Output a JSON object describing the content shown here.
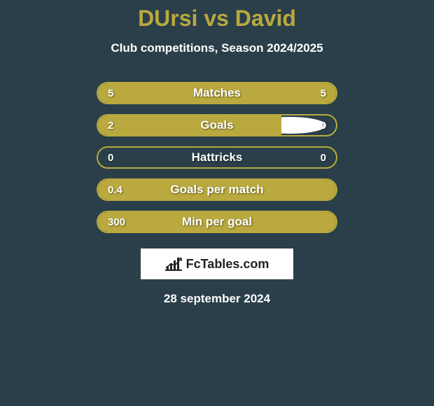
{
  "title": "DUrsi vs David",
  "subtitle": "Club competitions, Season 2024/2025",
  "date": "28 september 2024",
  "colors": {
    "background": "#2a3f4a",
    "accent": "#b9a93e",
    "text": "#ffffff",
    "logo_bg": "#ffffff",
    "logo_text": "#222222"
  },
  "logo_text": "FcTables.com",
  "bars": [
    {
      "label": "Matches",
      "left_value": "5",
      "right_value": "5",
      "left_fill_pct": 50,
      "right_fill_pct": 50,
      "show_left_ellipse": true,
      "show_right_ellipse": true,
      "ellipse_variant": 1
    },
    {
      "label": "Goals",
      "left_value": "2",
      "right_value": "0",
      "left_fill_pct": 77,
      "right_fill_pct": 0,
      "show_left_ellipse": true,
      "show_right_ellipse": true,
      "ellipse_variant": 2
    },
    {
      "label": "Hattricks",
      "left_value": "0",
      "right_value": "0",
      "left_fill_pct": 0,
      "right_fill_pct": 0,
      "show_left_ellipse": false,
      "show_right_ellipse": false,
      "ellipse_variant": 0
    },
    {
      "label": "Goals per match",
      "left_value": "0.4",
      "right_value": "",
      "left_fill_pct": 100,
      "right_fill_pct": 0,
      "show_left_ellipse": false,
      "show_right_ellipse": false,
      "ellipse_variant": 0
    },
    {
      "label": "Min per goal",
      "left_value": "300",
      "right_value": "",
      "left_fill_pct": 100,
      "right_fill_pct": 0,
      "show_left_ellipse": false,
      "show_right_ellipse": false,
      "ellipse_variant": 0
    }
  ]
}
